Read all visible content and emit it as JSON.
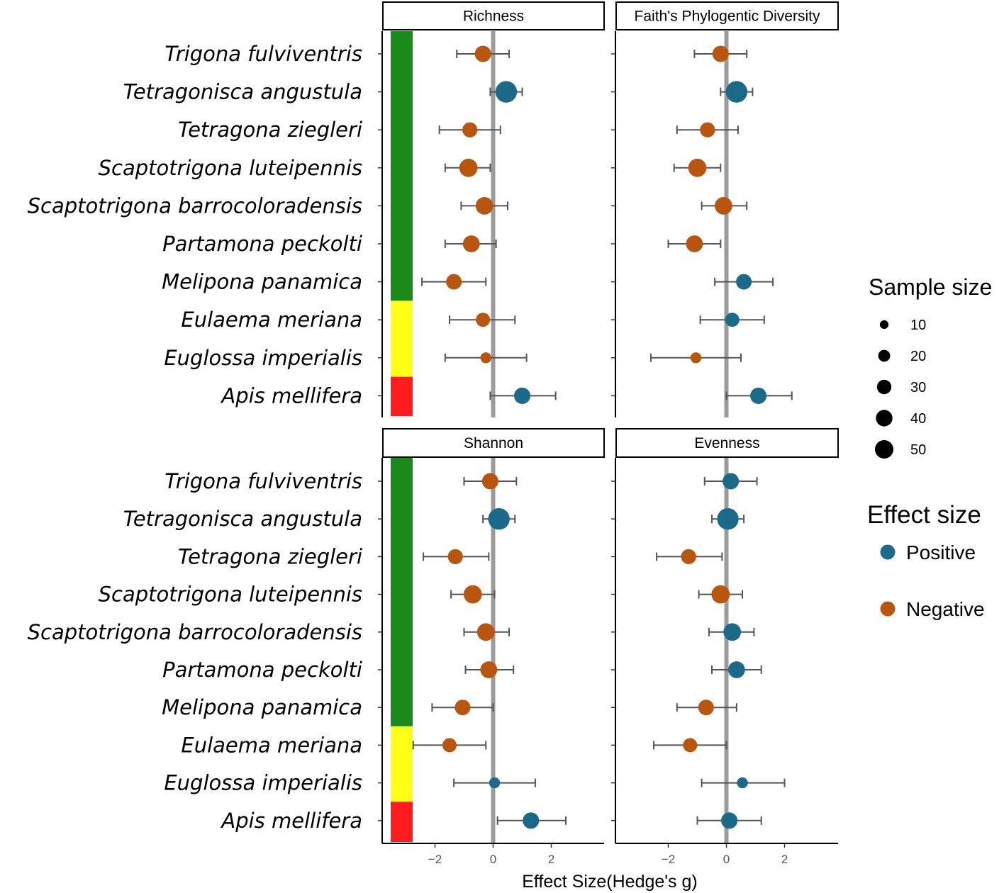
{
  "chart_data": {
    "type": "forest",
    "xlabel": "Effect Size(Hedge's g)",
    "x_ticks": [
      "−2",
      "0",
      "2"
    ],
    "xlim": [
      -3.6,
      3.6
    ],
    "species": [
      {
        "name": "Trigona fulviventris",
        "category": "green"
      },
      {
        "name": "Tetragonisca angustula",
        "category": "green"
      },
      {
        "name": "Tetragona ziegleri",
        "category": "green"
      },
      {
        "name": "Scaptotrigona luteipennis",
        "category": "green"
      },
      {
        "name": "Scaptotrigona barrocoloradensis",
        "category": "green"
      },
      {
        "name": "Partamona peckolti",
        "category": "green"
      },
      {
        "name": "Melipona panamica",
        "category": "green"
      },
      {
        "name": "Eulaema meriana",
        "category": "yellow"
      },
      {
        "name": "Euglossa imperialis",
        "category": "yellow"
      },
      {
        "name": "Apis mellifera",
        "category": "red"
      }
    ],
    "category_colors": {
      "green": "#1a8a1a",
      "yellow": "#ffff18",
      "red": "#ff1c1c"
    },
    "effect_colors": {
      "Positive": "#1c6a89",
      "Negative": "#b8550e"
    },
    "panels": [
      {
        "title": "Richness",
        "points": [
          {
            "g": -0.35,
            "lo": -1.25,
            "hi": 0.55,
            "n": 25,
            "effect": "Negative"
          },
          {
            "g": 0.45,
            "lo": -0.1,
            "hi": 1.0,
            "n": 50,
            "effect": "Positive"
          },
          {
            "g": -0.8,
            "lo": -1.85,
            "hi": 0.25,
            "n": 20,
            "effect": "Negative"
          },
          {
            "g": -0.85,
            "lo": -1.65,
            "hi": -0.1,
            "n": 33,
            "effect": "Negative"
          },
          {
            "g": -0.3,
            "lo": -1.1,
            "hi": 0.5,
            "n": 30,
            "effect": "Negative"
          },
          {
            "g": -0.75,
            "lo": -1.65,
            "hi": 0.1,
            "n": 27,
            "effect": "Negative"
          },
          {
            "g": -1.35,
            "lo": -2.45,
            "hi": -0.25,
            "n": 22,
            "effect": "Negative"
          },
          {
            "g": -0.35,
            "lo": -1.5,
            "hi": 0.75,
            "n": 17,
            "effect": "Negative"
          },
          {
            "g": -0.25,
            "lo": -1.65,
            "hi": 1.15,
            "n": 8,
            "effect": "Negative"
          },
          {
            "g": 1.0,
            "lo": -0.1,
            "hi": 2.15,
            "n": 25,
            "effect": "Positive"
          }
        ]
      },
      {
        "title": "Faith's Phylogentic Diversity",
        "points": [
          {
            "g": -0.2,
            "lo": -1.1,
            "hi": 0.7,
            "n": 25,
            "effect": "Negative"
          },
          {
            "g": 0.35,
            "lo": -0.2,
            "hi": 0.9,
            "n": 50,
            "effect": "Positive"
          },
          {
            "g": -0.65,
            "lo": -1.7,
            "hi": 0.4,
            "n": 20,
            "effect": "Negative"
          },
          {
            "g": -1.0,
            "lo": -1.8,
            "hi": -0.2,
            "n": 33,
            "effect": "Negative"
          },
          {
            "g": -0.1,
            "lo": -0.85,
            "hi": 0.7,
            "n": 30,
            "effect": "Negative"
          },
          {
            "g": -1.1,
            "lo": -2.0,
            "hi": -0.2,
            "n": 27,
            "effect": "Negative"
          },
          {
            "g": 0.6,
            "lo": -0.4,
            "hi": 1.6,
            "n": 22,
            "effect": "Positive"
          },
          {
            "g": 0.2,
            "lo": -0.9,
            "hi": 1.3,
            "n": 17,
            "effect": "Positive"
          },
          {
            "g": -1.05,
            "lo": -2.6,
            "hi": 0.5,
            "n": 8,
            "effect": "Negative"
          },
          {
            "g": 1.1,
            "lo": 0.0,
            "hi": 2.25,
            "n": 25,
            "effect": "Positive"
          }
        ]
      },
      {
        "title": "Shannon",
        "points": [
          {
            "g": -0.1,
            "lo": -1.0,
            "hi": 0.8,
            "n": 25,
            "effect": "Negative"
          },
          {
            "g": 0.2,
            "lo": -0.35,
            "hi": 0.75,
            "n": 50,
            "effect": "Positive"
          },
          {
            "g": -1.3,
            "lo": -2.4,
            "hi": -0.15,
            "n": 20,
            "effect": "Negative"
          },
          {
            "g": -0.7,
            "lo": -1.45,
            "hi": 0.05,
            "n": 33,
            "effect": "Negative"
          },
          {
            "g": -0.25,
            "lo": -1.0,
            "hi": 0.55,
            "n": 30,
            "effect": "Negative"
          },
          {
            "g": -0.15,
            "lo": -0.95,
            "hi": 0.7,
            "n": 27,
            "effect": "Negative"
          },
          {
            "g": -1.05,
            "lo": -2.1,
            "hi": 0.0,
            "n": 22,
            "effect": "Negative"
          },
          {
            "g": -1.5,
            "lo": -2.75,
            "hi": -0.25,
            "n": 17,
            "effect": "Negative"
          },
          {
            "g": 0.05,
            "lo": -1.35,
            "hi": 1.45,
            "n": 8,
            "effect": "Positive"
          },
          {
            "g": 1.3,
            "lo": 0.15,
            "hi": 2.5,
            "n": 25,
            "effect": "Positive"
          }
        ]
      },
      {
        "title": "Evenness",
        "points": [
          {
            "g": 0.15,
            "lo": -0.75,
            "hi": 1.05,
            "n": 25,
            "effect": "Positive"
          },
          {
            "g": 0.05,
            "lo": -0.5,
            "hi": 0.6,
            "n": 50,
            "effect": "Positive"
          },
          {
            "g": -1.3,
            "lo": -2.4,
            "hi": -0.15,
            "n": 20,
            "effect": "Negative"
          },
          {
            "g": -0.2,
            "lo": -0.95,
            "hi": 0.55,
            "n": 33,
            "effect": "Negative"
          },
          {
            "g": 0.2,
            "lo": -0.6,
            "hi": 0.95,
            "n": 30,
            "effect": "Positive"
          },
          {
            "g": 0.35,
            "lo": -0.5,
            "hi": 1.2,
            "n": 27,
            "effect": "Positive"
          },
          {
            "g": -0.7,
            "lo": -1.7,
            "hi": 0.35,
            "n": 22,
            "effect": "Negative"
          },
          {
            "g": -1.25,
            "lo": -2.5,
            "hi": 0.0,
            "n": 17,
            "effect": "Negative"
          },
          {
            "g": 0.55,
            "lo": -0.85,
            "hi": 2.0,
            "n": 8,
            "effect": "Positive"
          },
          {
            "g": 0.1,
            "lo": -1.0,
            "hi": 1.2,
            "n": 25,
            "effect": "Positive"
          }
        ]
      }
    ],
    "legend_size": {
      "title": "Sample size",
      "values": [
        10,
        20,
        30,
        40,
        50
      ]
    },
    "legend_effect": {
      "title": "Effect size",
      "items": [
        "Positive",
        "Negative"
      ]
    }
  }
}
